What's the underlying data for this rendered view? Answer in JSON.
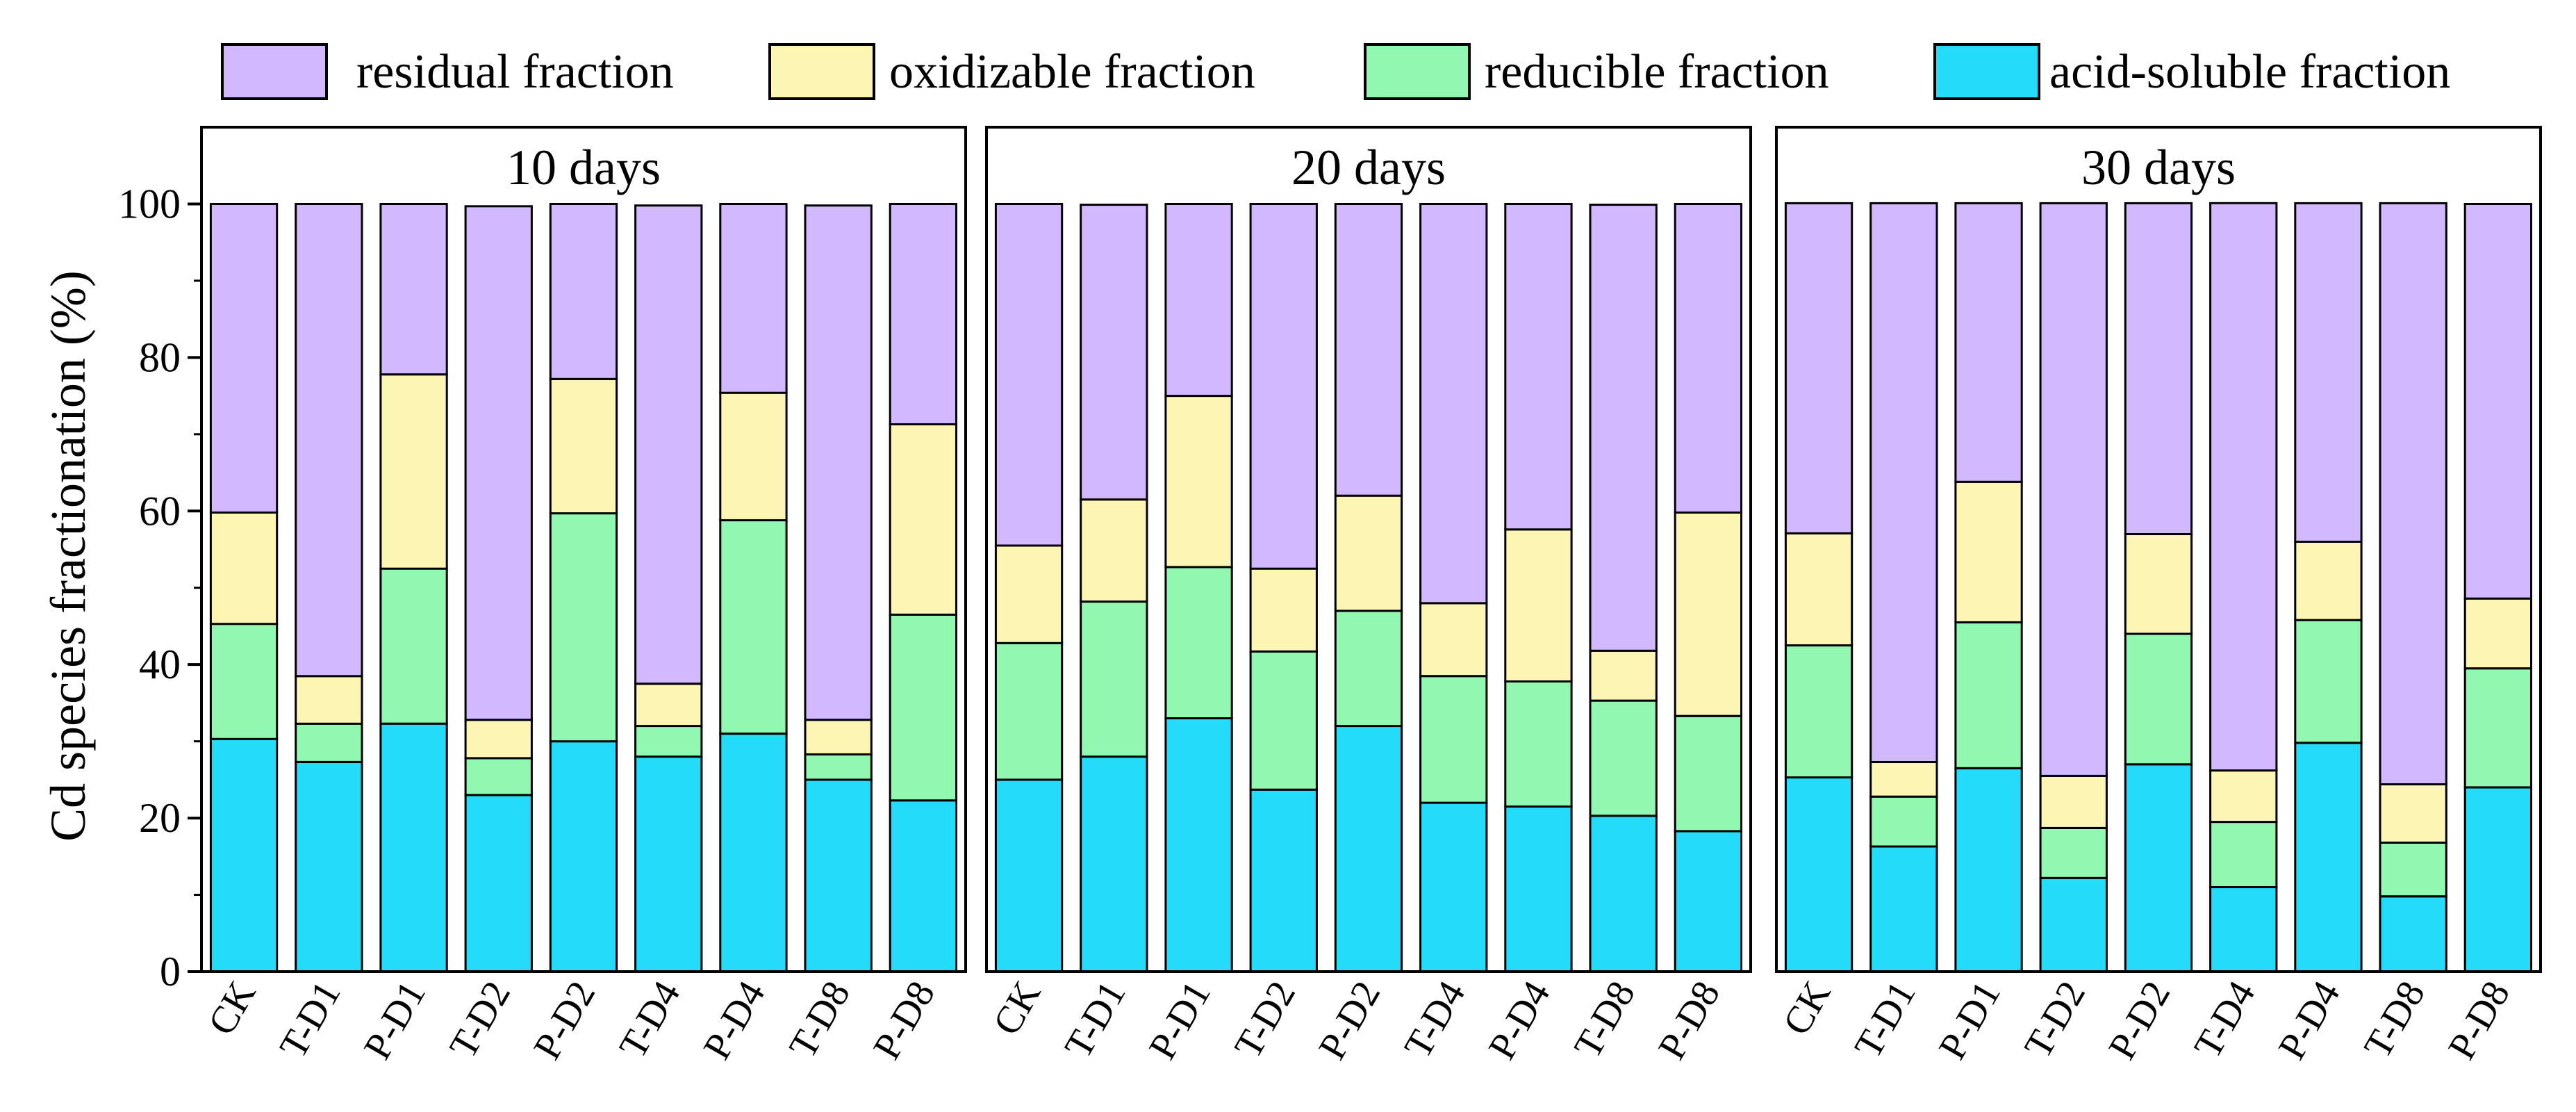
{
  "chart_data": {
    "type": "bar",
    "stacked": true,
    "ylabel": "Cd species fractionation (%)",
    "ylim": [
      0,
      110
    ],
    "yticks": [
      "0",
      "20",
      "40",
      "60",
      "80",
      "100"
    ],
    "legend": {
      "placement": "top",
      "entries": [
        "residual fraction",
        "oxidizable fraction",
        "reducible fraction",
        "acid-soluble fraction"
      ]
    },
    "colors": {
      "residual": "#D2B8FF",
      "oxidizable": "#FCF5B4",
      "reducible": "#92F7B1",
      "acid": "#22DCF9"
    },
    "series_order_bottom_to_top": [
      "acid-soluble fraction",
      "reducible fraction",
      "oxidizable fraction",
      "residual fraction"
    ],
    "panels": [
      {
        "title": "10 days",
        "categories": [
          "CK",
          "T-D1",
          "P-D1",
          "T-D2",
          "P-D2",
          "T-D4",
          "P-D4",
          "T-D8",
          "P-D8"
        ],
        "series": [
          {
            "name": "acid-soluble fraction",
            "values": [
              30.3,
              27.3,
              32.3,
              23.0,
              30.0,
              28.0,
              31.0,
              25.0,
              22.3
            ]
          },
          {
            "name": "reducible fraction",
            "values": [
              15.0,
              5.0,
              20.2,
              4.8,
              29.7,
              4.0,
              27.8,
              3.3,
              24.2
            ]
          },
          {
            "name": "oxidizable fraction",
            "values": [
              14.5,
              6.2,
              25.3,
              5.0,
              17.5,
              5.5,
              16.6,
              4.5,
              24.8
            ]
          },
          {
            "name": "residual fraction",
            "values": [
              40.2,
              61.5,
              22.2,
              66.9,
              22.8,
              62.3,
              24.6,
              67.0,
              28.7
            ]
          }
        ]
      },
      {
        "title": "20 days",
        "categories": [
          "CK",
          "T-D1",
          "P-D1",
          "T-D2",
          "P-D2",
          "T-D4",
          "P-D4",
          "T-D8",
          "P-D8"
        ],
        "series": [
          {
            "name": "acid-soluble fraction",
            "values": [
              25.0,
              28.0,
              33.0,
              23.7,
              32.0,
              22.0,
              21.5,
              20.3,
              18.3
            ]
          },
          {
            "name": "reducible fraction",
            "values": [
              17.8,
              20.2,
              19.7,
              18.0,
              15.0,
              16.5,
              16.3,
              15.0,
              15.0
            ]
          },
          {
            "name": "oxidizable fraction",
            "values": [
              12.7,
              13.3,
              22.3,
              10.8,
              15.0,
              9.5,
              19.8,
              6.5,
              26.5
            ]
          },
          {
            "name": "residual fraction",
            "values": [
              44.5,
              38.4,
              25.0,
              47.5,
              38.0,
              52.0,
              42.4,
              58.1,
              40.2
            ]
          }
        ]
      },
      {
        "title": "30 days",
        "categories": [
          "CK",
          "T-D1",
          "P-D1",
          "T-D2",
          "P-D2",
          "T-D4",
          "P-D4",
          "T-D8",
          "P-D8"
        ],
        "series": [
          {
            "name": "acid-soluble fraction",
            "values": [
              25.3,
              16.3,
              26.5,
              12.2,
              27.0,
              11.0,
              29.8,
              9.8,
              24.0
            ]
          },
          {
            "name": "reducible fraction",
            "values": [
              17.2,
              6.5,
              19.0,
              6.5,
              17.0,
              8.5,
              16.0,
              7.0,
              15.5
            ]
          },
          {
            "name": "oxidizable fraction",
            "values": [
              14.6,
              4.5,
              18.3,
              6.8,
              13.0,
              6.7,
              10.2,
              7.6,
              9.1
            ]
          },
          {
            "name": "residual fraction",
            "values": [
              43.0,
              72.8,
              36.3,
              74.6,
              43.1,
              73.9,
              44.1,
              75.7,
              51.4
            ]
          }
        ]
      }
    ]
  }
}
